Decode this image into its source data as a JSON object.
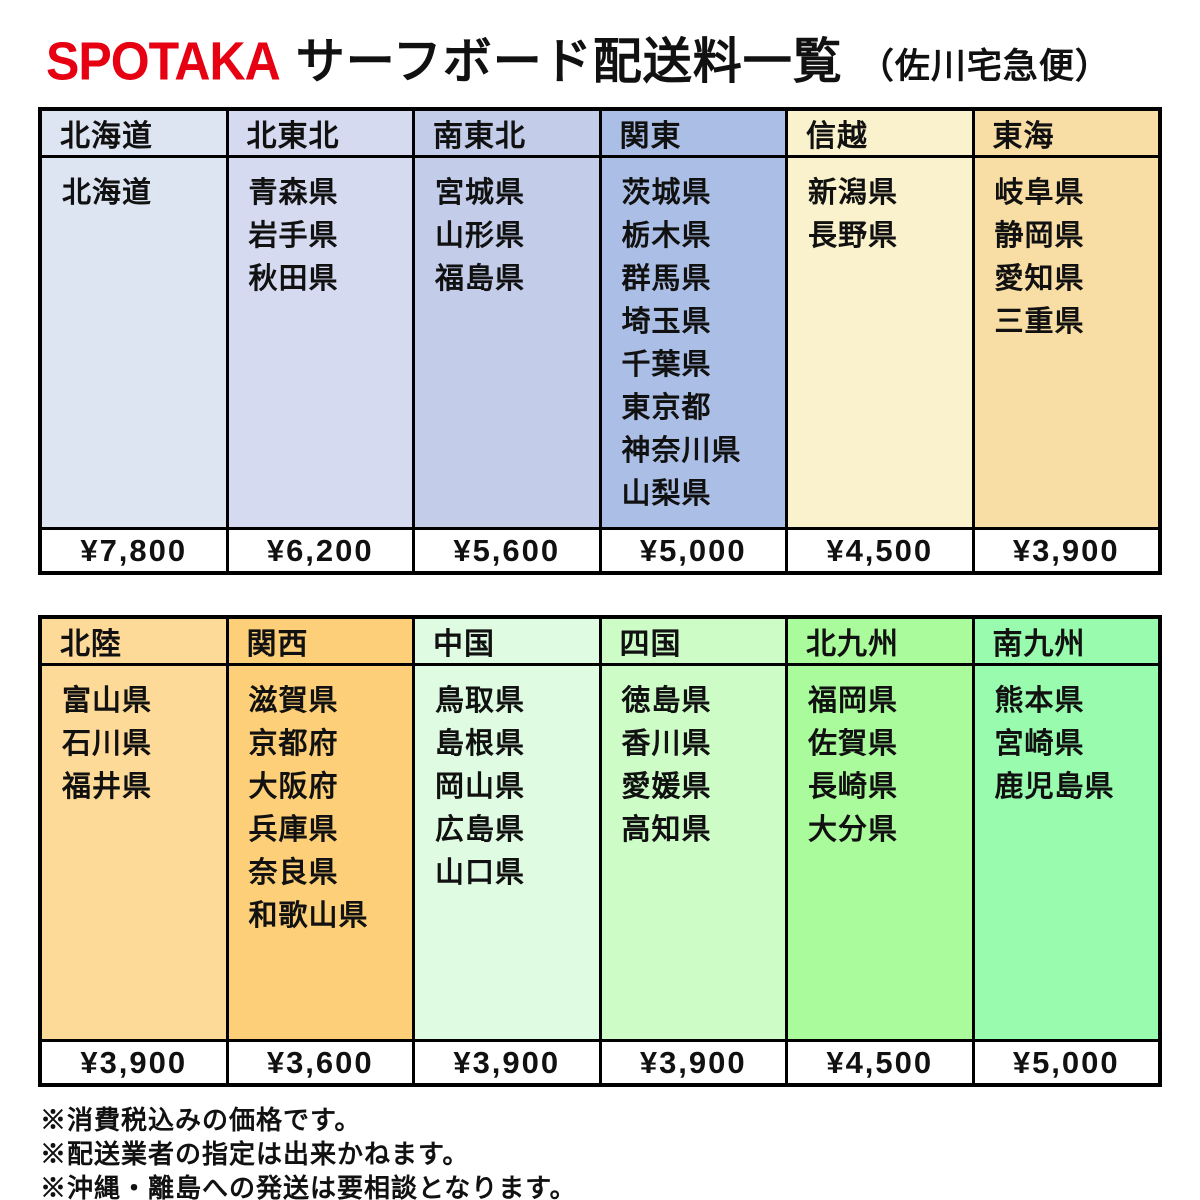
{
  "title": {
    "logo": "SPOTAKA",
    "main": "サーフボード配送料一覧",
    "sub": "（佐川宅急便）"
  },
  "colors": {
    "logo_red": "#e60012",
    "border": "#000000",
    "price_bg": "#ffffff"
  },
  "tables": [
    {
      "columns": [
        {
          "region": "北海道",
          "prefectures": [
            "北海道"
          ],
          "price": "¥7,800",
          "color": "#dde4f2"
        },
        {
          "region": "北東北",
          "prefectures": [
            "青森県",
            "岩手県",
            "秋田県"
          ],
          "price": "¥6,200",
          "color": "#d5daf0"
        },
        {
          "region": "南東北",
          "prefectures": [
            "宮城県",
            "山形県",
            "福島県"
          ],
          "price": "¥5,600",
          "color": "#c3cdea"
        },
        {
          "region": "関東",
          "prefectures": [
            "茨城県",
            "栃木県",
            "群馬県",
            "埼玉県",
            "千葉県",
            "東京都",
            "神奈川県",
            "山梨県"
          ],
          "price": "¥5,000",
          "color": "#abbfe6"
        },
        {
          "region": "信越",
          "prefectures": [
            "新潟県",
            "長野県"
          ],
          "price": "¥4,500",
          "color": "#faf2cc"
        },
        {
          "region": "東海",
          "prefectures": [
            "岐阜県",
            "静岡県",
            "愛知県",
            "三重県"
          ],
          "price": "¥3,900",
          "color": "#f8dda5"
        }
      ]
    },
    {
      "columns": [
        {
          "region": "北陸",
          "prefectures": [
            "富山県",
            "石川県",
            "福井県"
          ],
          "price": "¥3,900",
          "color": "#fdda97"
        },
        {
          "region": "関西",
          "prefectures": [
            "滋賀県",
            "京都府",
            "大阪府",
            "兵庫県",
            "奈良県",
            "和歌山県"
          ],
          "price": "¥3,600",
          "color": "#fccf78"
        },
        {
          "region": "中国",
          "prefectures": [
            "鳥取県",
            "島根県",
            "岡山県",
            "広島県",
            "山口県"
          ],
          "price": "¥3,900",
          "color": "#dffce3"
        },
        {
          "region": "四国",
          "prefectures": [
            "徳島県",
            "香川県",
            "愛媛県",
            "高知県"
          ],
          "price": "¥3,900",
          "color": "#cdfcc7"
        },
        {
          "region": "北九州",
          "prefectures": [
            "福岡県",
            "佐賀県",
            "長崎県",
            "大分県"
          ],
          "price": "¥4,500",
          "color": "#a9fb9b"
        },
        {
          "region": "南九州",
          "prefectures": [
            "熊本県",
            "宮崎県",
            "鹿児島県"
          ],
          "price": "¥5,000",
          "color": "#98fbad"
        }
      ]
    }
  ],
  "notes": [
    "※消費税込みの価格です。",
    "※配送業者の指定は出来かねます。",
    "※沖縄・離島への発送は要相談となります。"
  ]
}
